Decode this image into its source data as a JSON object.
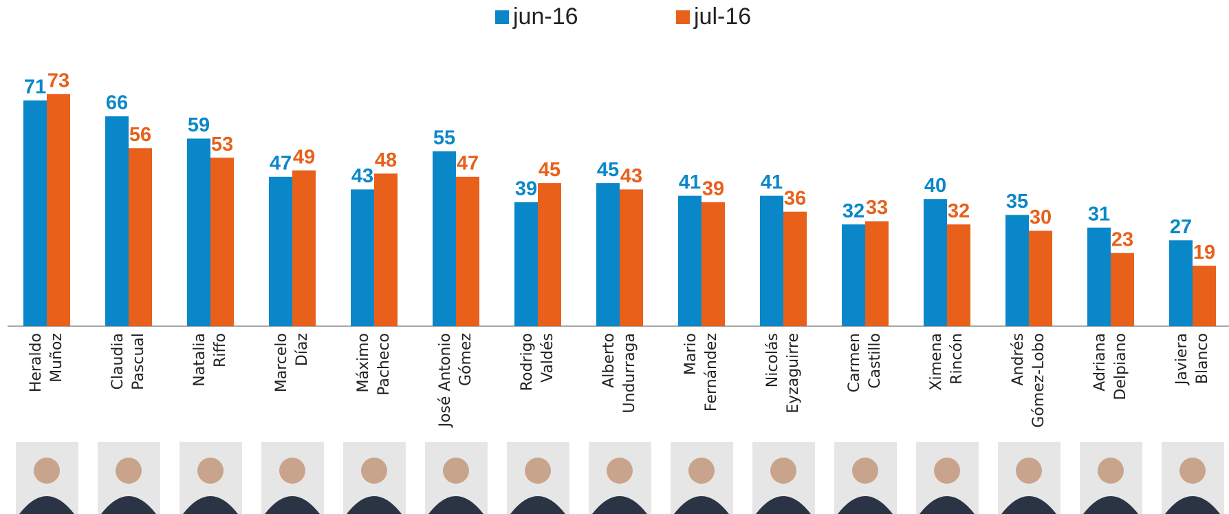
{
  "chart_data": {
    "type": "bar",
    "categories": [
      [
        "Heraldo",
        "Muñoz"
      ],
      [
        "Claudia",
        "Pascual"
      ],
      [
        "Natalia",
        "Riffo"
      ],
      [
        "Marcelo",
        "Díaz"
      ],
      [
        "Máximo",
        "Pacheco"
      ],
      [
        "José Antonio",
        "Gómez"
      ],
      [
        "Rodrigo",
        "Valdés"
      ],
      [
        "Alberto",
        "Undurraga"
      ],
      [
        "Mario",
        "Fernández"
      ],
      [
        "Nicolás",
        "Eyzaguirre"
      ],
      [
        "Carmen",
        "Castillo"
      ],
      [
        "Ximena",
        "Rincón"
      ],
      [
        "Andrés",
        "Gómez-Lobo"
      ],
      [
        "Adriana",
        "Delpiano"
      ],
      [
        "Javiera",
        "Blanco"
      ]
    ],
    "series": [
      {
        "name": "jun-16",
        "color": "#0a87c9",
        "values": [
          71,
          66,
          59,
          47,
          43,
          55,
          39,
          45,
          41,
          41,
          32,
          40,
          35,
          31,
          27
        ]
      },
      {
        "name": "jul-16",
        "color": "#e8601a",
        "values": [
          73,
          56,
          53,
          49,
          48,
          47,
          45,
          43,
          39,
          36,
          33,
          32,
          30,
          23,
          19
        ]
      }
    ],
    "legend": "top"
  }
}
